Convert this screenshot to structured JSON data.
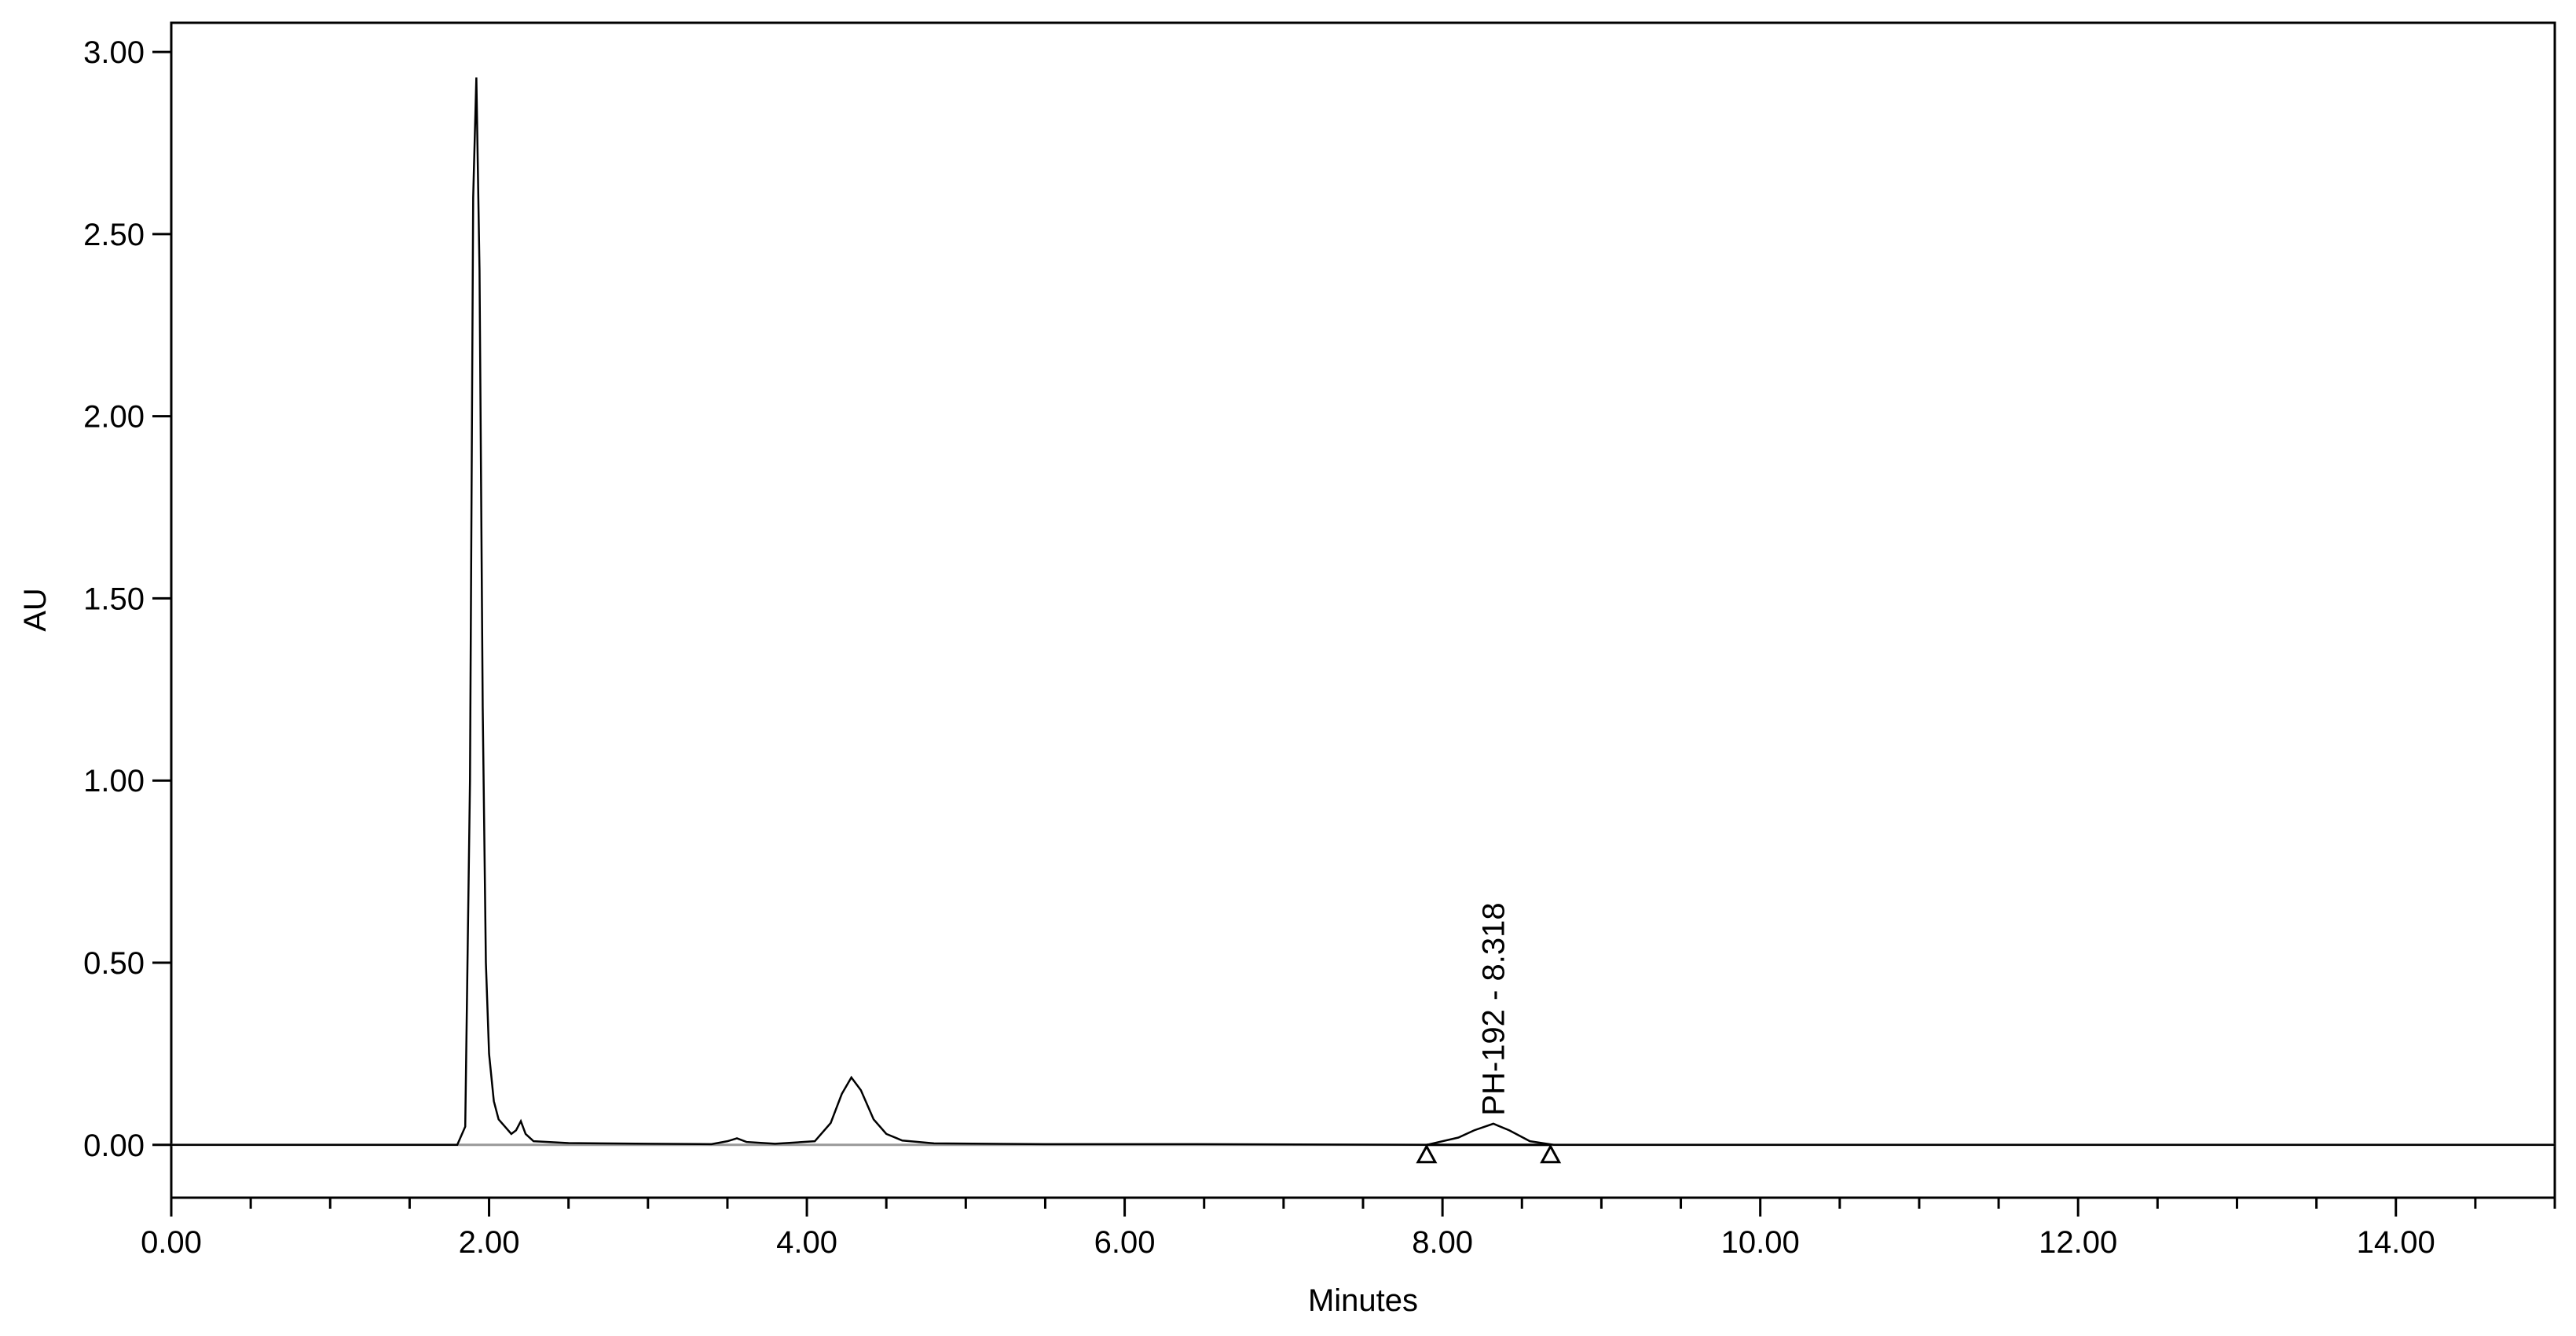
{
  "chart_data": {
    "type": "line",
    "xlabel": "Minutes",
    "ylabel": "AU",
    "xlim": [
      0,
      15
    ],
    "ylim": [
      -0.145,
      3.08
    ],
    "xticks": [
      {
        "value": 0,
        "label": "0.00"
      },
      {
        "value": 2,
        "label": "2.00"
      },
      {
        "value": 4,
        "label": "4.00"
      },
      {
        "value": 6,
        "label": "6.00"
      },
      {
        "value": 8,
        "label": "8.00"
      },
      {
        "value": 10,
        "label": "10.00"
      },
      {
        "value": 12,
        "label": "12.00"
      },
      {
        "value": 14,
        "label": "14.00"
      }
    ],
    "xminorticks": [
      0.5,
      1,
      1.5,
      2.5,
      3,
      3.5,
      4.5,
      5,
      5.5,
      6.5,
      7,
      7.5,
      8.5,
      9,
      9.5,
      10.5,
      11,
      11.5,
      12.5,
      13,
      13.5,
      14.5,
      15
    ],
    "yticks": [
      {
        "value": 0,
        "label": "0.00"
      },
      {
        "value": 0.5,
        "label": "0.50"
      },
      {
        "value": 1,
        "label": "1.00"
      },
      {
        "value": 1.5,
        "label": "1.50"
      },
      {
        "value": 2,
        "label": "2.00"
      },
      {
        "value": 2.5,
        "label": "2.50"
      },
      {
        "value": 3,
        "label": "3.00"
      }
    ],
    "series": [
      {
        "color": "#000000",
        "x": [
          0,
          1.8,
          1.85,
          1.88,
          1.9,
          1.92,
          1.94,
          1.96,
          1.98,
          2.0,
          2.03,
          2.06,
          2.1,
          2.14,
          2.17,
          2.2,
          2.23,
          2.28,
          2.5,
          3.0,
          3.4,
          3.5,
          3.56,
          3.62,
          3.8,
          4.05,
          4.15,
          4.22,
          4.28,
          4.34,
          4.42,
          4.5,
          4.6,
          4.8,
          5.5,
          6.4,
          7.9,
          8.1,
          8.2,
          8.32,
          8.42,
          8.55,
          8.7,
          10,
          15
        ],
        "values": [
          0,
          0,
          0.05,
          1.0,
          2.6,
          2.93,
          2.4,
          1.2,
          0.5,
          0.25,
          0.12,
          0.07,
          0.05,
          0.03,
          0.04,
          0.065,
          0.03,
          0.01,
          0.005,
          0.003,
          0.002,
          0.01,
          0.018,
          0.008,
          0.003,
          0.01,
          0.06,
          0.14,
          0.185,
          0.15,
          0.07,
          0.03,
          0.012,
          0.004,
          0.002,
          0.002,
          0,
          0.02,
          0.04,
          0.058,
          0.04,
          0.01,
          0,
          0,
          0
        ]
      }
    ],
    "peak_markers": [
      7.9,
      8.68
    ],
    "annotation": {
      "text": "PH-192 - 8.318",
      "x": 8.318
    }
  }
}
